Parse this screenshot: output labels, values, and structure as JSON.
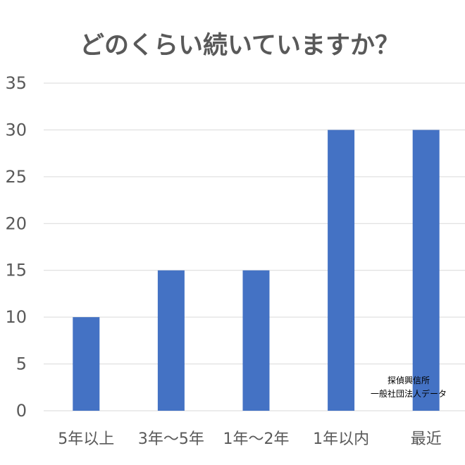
{
  "chart_data": {
    "type": "bar",
    "title": "どのくらい続いていますか？",
    "categories": [
      "5年以上",
      "3年〜5年",
      "1年〜2年",
      "1年以内",
      "最近"
    ],
    "values": [
      10,
      15,
      15,
      30,
      30
    ],
    "ylim": [
      0,
      35
    ],
    "yticks": [
      0,
      5,
      10,
      15,
      20,
      25,
      30,
      35
    ],
    "xlabel": "",
    "ylabel": "",
    "grid": true,
    "bar_color": "#4472c4",
    "annotation": {
      "line1": "探偵興信所",
      "line2": "一般社団法人データ"
    }
  }
}
